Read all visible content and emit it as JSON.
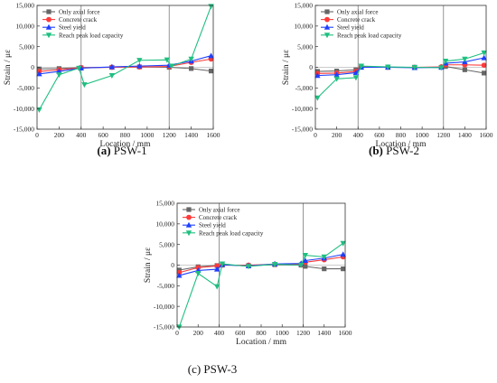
{
  "chart_data": [
    {
      "type": "line",
      "caption_letter": "(a)",
      "caption_text": "PSW-1",
      "xlabel": "Location / mm",
      "ylabel": "Strain / με",
      "xlim": [
        0,
        1600
      ],
      "ylim": [
        -15000,
        15000
      ],
      "xticks": [
        "0",
        "200",
        "400",
        "600",
        "800",
        "1000",
        "1200",
        "1400",
        "1600"
      ],
      "yticks": [
        "-15,000",
        "-10,000",
        "-5,000",
        "0",
        "5,000",
        "10,000",
        "15,000"
      ],
      "vlines": [
        400,
        1200
      ],
      "legend_position": "top-left",
      "series": [
        {
          "name": "Only axial force",
          "color": "#666666",
          "marker": "square",
          "x": [
            20,
            200,
            400,
            680,
            930,
            1200,
            1400,
            1580
          ],
          "y": [
            -400,
            -300,
            -100,
            0,
            100,
            0,
            -300,
            -900
          ]
        },
        {
          "name": "Concrete crack",
          "color": "#ff3a3a",
          "marker": "circle",
          "x": [
            20,
            200,
            400,
            680,
            930,
            1200,
            1400,
            1580
          ],
          "y": [
            -1000,
            -600,
            -100,
            0,
            100,
            200,
            1200,
            2000
          ]
        },
        {
          "name": "Steel yield",
          "color": "#1f3fff",
          "marker": "triangle-up",
          "x": [
            20,
            200,
            400,
            680,
            930,
            1200,
            1400,
            1580
          ],
          "y": [
            -1600,
            -1000,
            -200,
            100,
            300,
            500,
            1500,
            2800
          ]
        },
        {
          "name": "Reach peak load capacity",
          "color": "#1fbf80",
          "marker": "triangle-down",
          "x": [
            20,
            200,
            380,
            430,
            680,
            930,
            1180,
            1220,
            1400,
            1580
          ],
          "y": [
            -10300,
            -1800,
            -200,
            -4200,
            -2000,
            1700,
            1800,
            300,
            2000,
            14800
          ]
        }
      ]
    },
    {
      "type": "line",
      "caption_letter": "(b)",
      "caption_text": "PSW-2",
      "xlabel": "Location / mm",
      "ylabel": "Strain / με",
      "xlim": [
        0,
        1600
      ],
      "ylim": [
        -15000,
        15000
      ],
      "xticks": [
        "0",
        "200",
        "400",
        "600",
        "800",
        "1000",
        "1200",
        "1400",
        "1600"
      ],
      "yticks": [
        "-15,000",
        "-10,000",
        "-5,000",
        "0",
        "5,000",
        "10,000",
        "15,000"
      ],
      "vlines": [
        400,
        1200
      ],
      "legend_position": "top-left",
      "series": [
        {
          "name": "Only axial force",
          "color": "#666666",
          "marker": "square",
          "x": [
            20,
            200,
            380,
            430,
            680,
            930,
            1180,
            1220,
            1400,
            1580
          ],
          "y": [
            -1000,
            -900,
            -600,
            100,
            0,
            0,
            0,
            200,
            -600,
            -1400
          ]
        },
        {
          "name": "Concrete crack",
          "color": "#ff3a3a",
          "marker": "circle",
          "x": [
            20,
            200,
            380,
            430,
            680,
            930,
            1180,
            1220,
            1400,
            1580
          ],
          "y": [
            -1500,
            -1400,
            -1000,
            100,
            0,
            0,
            100,
            600,
            600,
            500
          ]
        },
        {
          "name": "Steel yield",
          "color": "#1f3fff",
          "marker": "triangle-up",
          "x": [
            20,
            200,
            380,
            430,
            680,
            930,
            1180,
            1220,
            1400,
            1580
          ],
          "y": [
            -2000,
            -1800,
            -1300,
            0,
            0,
            -100,
            0,
            1000,
            1300,
            2300
          ]
        },
        {
          "name": "Reach peak load capacity",
          "color": "#1fbf80",
          "marker": "triangle-down",
          "x": [
            20,
            200,
            380,
            430,
            680,
            930,
            1180,
            1220,
            1400,
            1580
          ],
          "y": [
            -7400,
            -2800,
            -2500,
            300,
            100,
            0,
            -100,
            1500,
            2000,
            3500
          ]
        }
      ]
    },
    {
      "type": "line",
      "caption_letter": "",
      "caption_text": "(c) PSW-3",
      "xlabel": "Location / mm",
      "ylabel": "Strain / με",
      "xlim": [
        0,
        1600
      ],
      "ylim": [
        -15000,
        15000
      ],
      "xticks": [
        "0",
        "200",
        "400",
        "600",
        "800",
        "1000",
        "1200",
        "1400",
        "1600"
      ],
      "yticks": [
        "-15,000",
        "-10,000",
        "-5,000",
        "0",
        "5,000",
        "10,000",
        "15,000"
      ],
      "vlines": [
        400,
        1200
      ],
      "legend_position": "top-left",
      "series": [
        {
          "name": "Only axial force",
          "color": "#666666",
          "marker": "square",
          "x": [
            20,
            200,
            380,
            430,
            680,
            930,
            1180,
            1220,
            1400,
            1580
          ],
          "y": [
            -1200,
            -400,
            -100,
            0,
            -100,
            100,
            0,
            -300,
            -900,
            -900
          ]
        },
        {
          "name": "Concrete crack",
          "color": "#ff3a3a",
          "marker": "circle",
          "x": [
            20,
            200,
            380,
            430,
            680,
            930,
            1180,
            1220,
            1400,
            1580
          ],
          "y": [
            -1800,
            -600,
            -200,
            0,
            0,
            200,
            200,
            700,
            1300,
            2000
          ]
        },
        {
          "name": "Steel yield",
          "color": "#1f3fff",
          "marker": "triangle-up",
          "x": [
            20,
            200,
            380,
            430,
            680,
            930,
            1180,
            1220,
            1400,
            1580
          ],
          "y": [
            -2500,
            -1300,
            -1000,
            100,
            -200,
            300,
            400,
            1100,
            1700,
            2600
          ]
        },
        {
          "name": "Reach peak load capacity",
          "color": "#1fbf80",
          "marker": "triangle-down",
          "x": [
            20,
            200,
            380,
            430,
            680,
            930,
            1180,
            1220,
            1400,
            1580
          ],
          "y": [
            -15000,
            -2000,
            -5200,
            300,
            -300,
            200,
            0,
            2400,
            2000,
            5300
          ]
        }
      ]
    }
  ]
}
